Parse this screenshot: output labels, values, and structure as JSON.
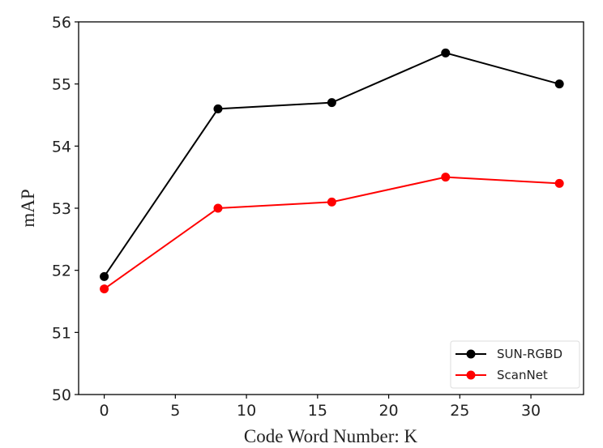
{
  "chart_data": {
    "type": "line",
    "title": "",
    "xlabel": "Code Word Number: K",
    "ylabel": "mAP",
    "x": [
      0,
      8,
      16,
      24,
      32
    ],
    "xlim": [
      -1.8,
      33.7
    ],
    "ylim": [
      50,
      56
    ],
    "xticks": [
      0,
      5,
      10,
      15,
      20,
      25,
      30
    ],
    "yticks": [
      50,
      51,
      52,
      53,
      54,
      55,
      56
    ],
    "grid": false,
    "legend_position": "bottom-right",
    "series": [
      {
        "name": "SUN-RGBD",
        "color": "#000000",
        "values": [
          51.9,
          54.6,
          54.7,
          55.5,
          55.0
        ]
      },
      {
        "name": "ScanNet",
        "color": "#ff0000",
        "values": [
          51.7,
          53.0,
          53.1,
          53.5,
          53.4
        ]
      }
    ]
  }
}
